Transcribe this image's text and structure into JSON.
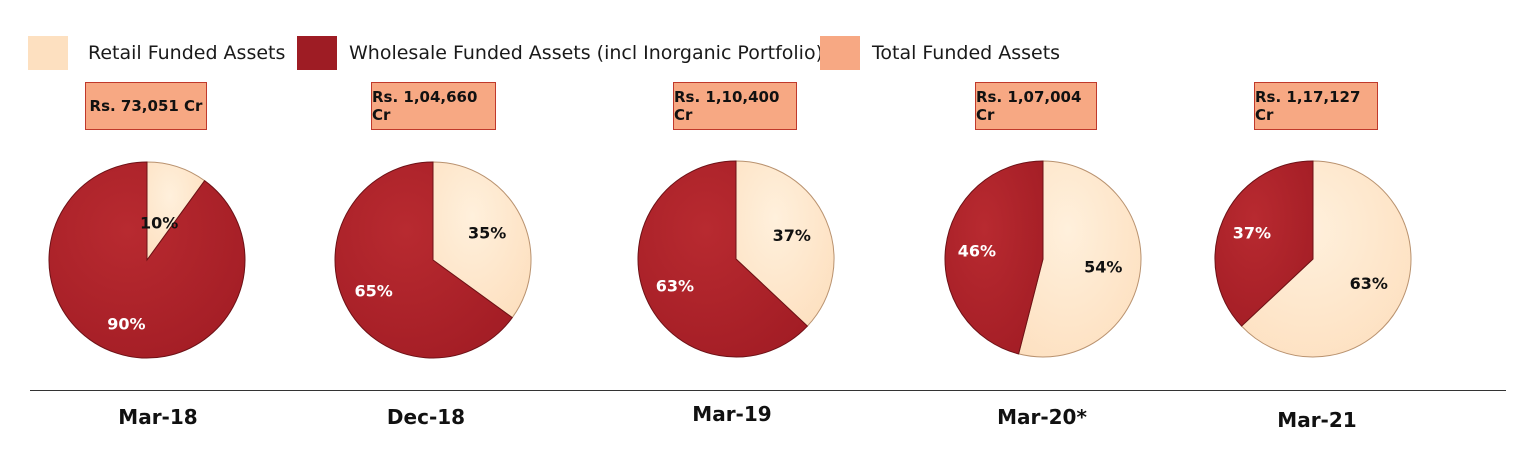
{
  "legend": [
    {
      "label": "Retail Funded Assets",
      "color": "#fde0c0"
    },
    {
      "label": "Wholesale Funded Assets (incl Inorganic Portfolio)",
      "color": "#9e1c24"
    },
    {
      "label": "Total Funded Assets",
      "color": "#f7a883"
    }
  ],
  "colors": {
    "retail": "#fde0c0",
    "wholesale": "#a31d25",
    "total_box": "#f7a883"
  },
  "chart_data": {
    "type": "pie",
    "title": "",
    "series_names": [
      "Retail Funded Assets",
      "Wholesale Funded Assets (incl Inorganic Portfolio)"
    ],
    "pies": [
      {
        "period": "Mar-18",
        "total": "Rs. 73,051 Cr",
        "retail": 10,
        "wholesale": 90,
        "retail_label": "10%",
        "wholesale_label": "90%"
      },
      {
        "period": "Dec-18",
        "total": "Rs. 1,04,660 Cr",
        "retail": 35,
        "wholesale": 65,
        "retail_label": "35%",
        "wholesale_label": "65%"
      },
      {
        "period": "Mar-19",
        "total": "Rs. 1,10,400 Cr",
        "retail": 37,
        "wholesale": 63,
        "retail_label": "37%",
        "wholesale_label": "63%"
      },
      {
        "period": "Mar-20*",
        "total": "Rs. 1,07,004 Cr",
        "retail": 54,
        "wholesale": 46,
        "retail_label": "54%",
        "wholesale_label": "46%"
      },
      {
        "period": "Mar-21",
        "total": "Rs. 1,17,127 Cr",
        "retail": 63,
        "wholesale": 37,
        "retail_label": "63%",
        "wholesale_label": "37%"
      }
    ]
  }
}
